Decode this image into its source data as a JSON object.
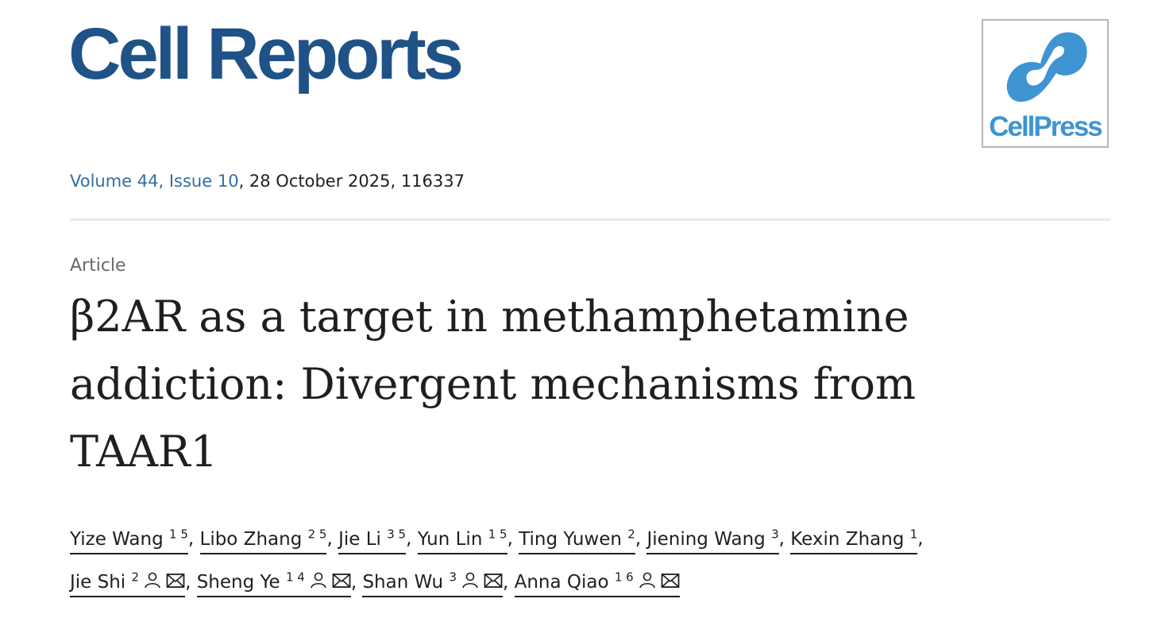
{
  "journal": {
    "name": "Cell Reports",
    "publisher_logo": "CellPress",
    "brand_color": "#1f5286",
    "logo_color": "#3f94d2"
  },
  "citation": {
    "volume_issue": "Volume 44, Issue 10",
    "rest": ", 28 October 2025, 116337"
  },
  "article": {
    "type": "Article",
    "title": "β2AR as a target in methamphetamine addiction: Divergent mechanisms from TAAR1"
  },
  "authors": [
    {
      "name": "Yize Wang",
      "aff": "1 5",
      "corresponding": false
    },
    {
      "name": "Libo Zhang",
      "aff": "2 5",
      "corresponding": false
    },
    {
      "name": "Jie Li",
      "aff": "3 5",
      "corresponding": false
    },
    {
      "name": "Yun Lin",
      "aff": "1 5",
      "corresponding": false
    },
    {
      "name": "Ting Yuwen",
      "aff": "2",
      "corresponding": false
    },
    {
      "name": "Jiening Wang",
      "aff": "3",
      "corresponding": false
    },
    {
      "name": "Kexin Zhang",
      "aff": "1",
      "corresponding": false
    },
    {
      "name": "Jie Shi",
      "aff": "2",
      "corresponding": true
    },
    {
      "name": "Sheng Ye",
      "aff": "1 4",
      "corresponding": true
    },
    {
      "name": "Shan Wu",
      "aff": "3",
      "corresponding": true
    },
    {
      "name": "Anna Qiao",
      "aff": "1 6",
      "corresponding": true
    }
  ]
}
